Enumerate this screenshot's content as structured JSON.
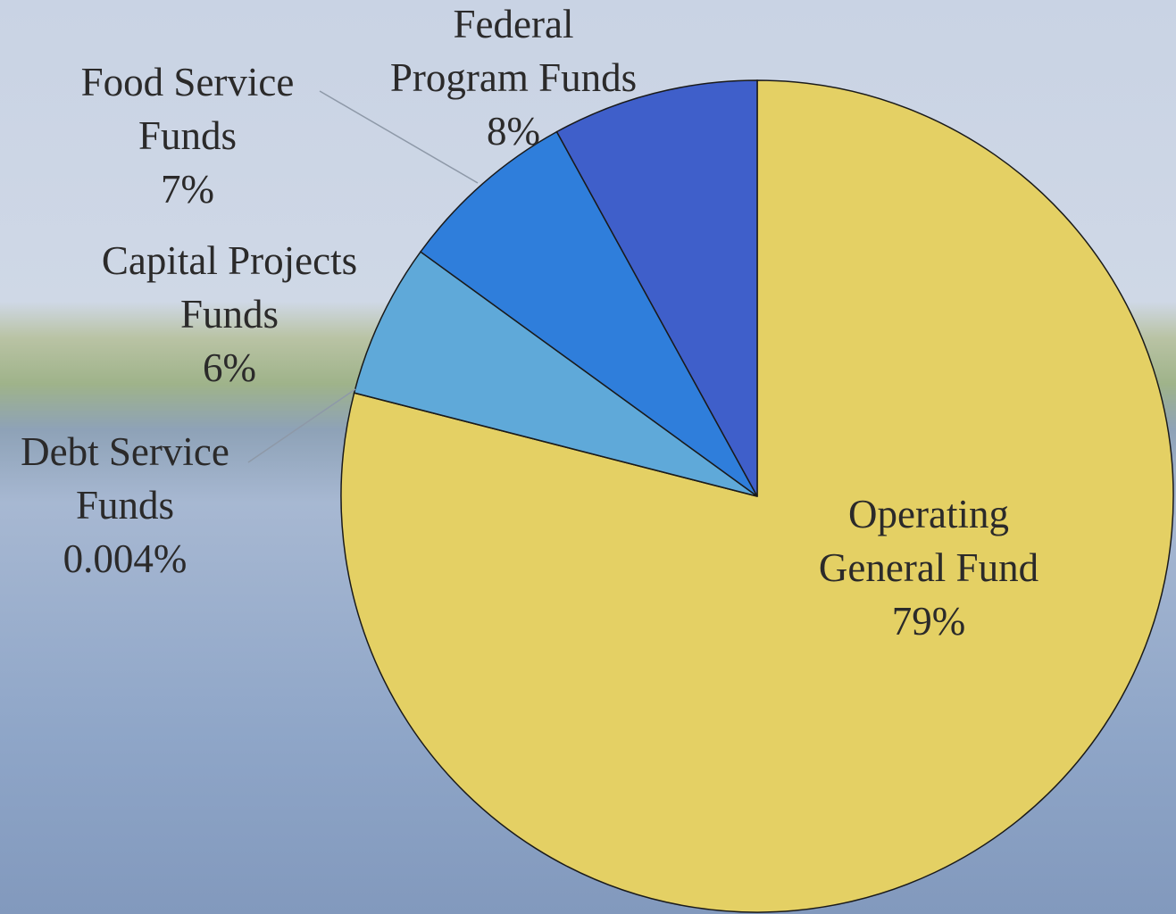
{
  "chart_data": {
    "type": "pie",
    "categories": [
      "Operating\nGeneral Fund",
      "Debt Service\nFunds",
      "Capital Projects\nFunds",
      "Food Service\nFunds",
      "Federal\nProgram Funds"
    ],
    "values": [
      79,
      0.004,
      6,
      7,
      8
    ],
    "value_labels": [
      "79%",
      "0.004%",
      "6%",
      "7%",
      "8%"
    ],
    "colors": [
      "#e4d064",
      "#a8b97c",
      "#5fa9d9",
      "#2f7edb",
      "#3f5fca"
    ]
  }
}
